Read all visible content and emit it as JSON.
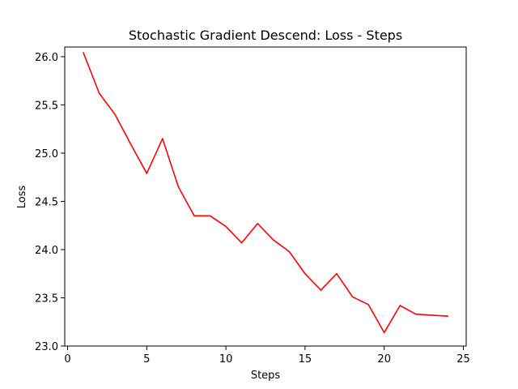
{
  "chart_data": {
    "type": "line",
    "title": "Stochastic Gradient Descend: Loss - Steps",
    "xlabel": "Steps",
    "ylabel": "Loss",
    "xlim": [
      0,
      25
    ],
    "ylim": [
      23.0,
      26.1
    ],
    "xticks": [
      0,
      5,
      10,
      15,
      20,
      25
    ],
    "yticks": [
      23.0,
      23.5,
      24.0,
      24.5,
      25.0,
      25.5,
      26.0
    ],
    "xtick_labels": [
      "0",
      "5",
      "10",
      "15",
      "20",
      "25"
    ],
    "ytick_labels": [
      "23.0",
      "23.5",
      "24.0",
      "24.5",
      "25.0",
      "25.5",
      "26.0"
    ],
    "grid": false,
    "series": [
      {
        "color": "#ff0000",
        "x": [
          1,
          2,
          3,
          4,
          5,
          6,
          7,
          8,
          9,
          10,
          11,
          12,
          13,
          14,
          15,
          16,
          17,
          18,
          19,
          20,
          21,
          22,
          24
        ],
        "y": [
          26.04,
          25.62,
          25.4,
          25.09,
          24.79,
          25.15,
          24.65,
          24.35,
          24.35,
          24.24,
          24.07,
          24.27,
          24.1,
          23.98,
          23.75,
          23.58,
          23.75,
          23.51,
          23.43,
          23.14,
          23.42,
          23.33,
          23.31
        ]
      }
    ]
  }
}
